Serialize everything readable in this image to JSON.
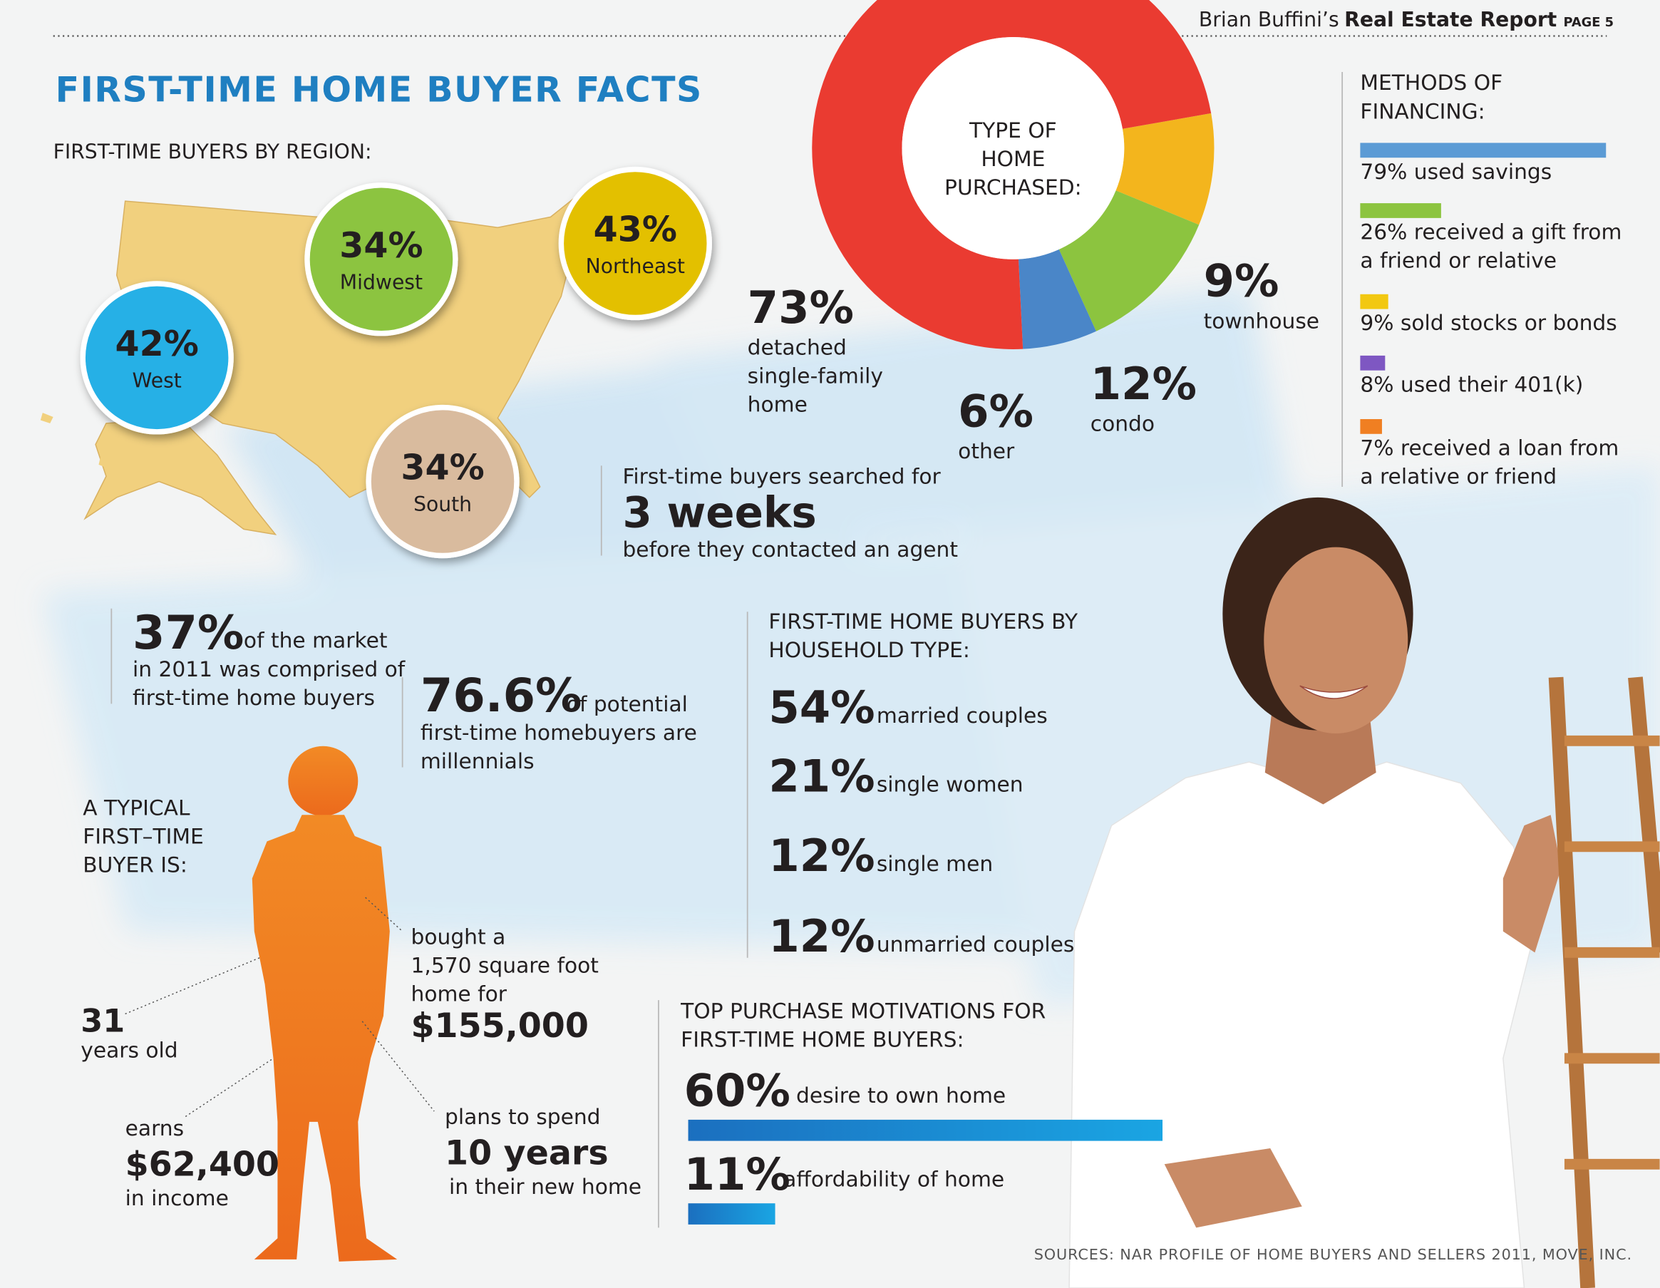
{
  "header": {
    "brand": "Brian Buffini’s",
    "report": "Real Estate Report",
    "page": "PAGE 5"
  },
  "title": "FIRST-TIME HOME BUYER FACTS",
  "regions": {
    "heading": "FIRST-TIME BUYERS BY REGION:",
    "items": [
      {
        "pct": "42%",
        "name": "West",
        "color": "#25b0e6"
      },
      {
        "pct": "34%",
        "name": "Midwest",
        "color": "#8cc43f"
      },
      {
        "pct": "43%",
        "name": "Northeast",
        "color": "#e3c000"
      },
      {
        "pct": "34%",
        "name": "South",
        "color": "#d9bb9e"
      }
    ]
  },
  "home_type": {
    "title": [
      "TYPE OF",
      "HOME",
      "PURCHASED:"
    ],
    "segments": [
      {
        "value": 9,
        "label": "9%",
        "name": [
          "townhouse"
        ],
        "color": "#f3b51d"
      },
      {
        "value": 12,
        "label": "12%",
        "name": [
          "condo"
        ],
        "color": "#8cc43f"
      },
      {
        "value": 6,
        "label": "6%",
        "name": [
          "other"
        ],
        "color": "#4a86c8"
      },
      {
        "value": 73,
        "label": "73%",
        "name": [
          "detached",
          "single-family",
          "home"
        ],
        "color": "#ea3b31"
      }
    ]
  },
  "financing": {
    "heading": [
      "METHODS OF",
      "FINANCING:"
    ],
    "items": [
      {
        "value": 79,
        "text": [
          "79% used savings"
        ],
        "color": "#5b9bd5"
      },
      {
        "value": 26,
        "text": [
          "26% received a gift from",
          "a friend or relative"
        ],
        "color": "#8cc43f"
      },
      {
        "value": 9,
        "text": [
          "9% sold stocks or bonds"
        ],
        "color": "#f2c811"
      },
      {
        "value": 8,
        "text": [
          "8% used their 401(k)"
        ],
        "color": "#7e57c2"
      },
      {
        "value": 7,
        "text": [
          "7% received a loan from",
          "a relative or friend"
        ],
        "color": "#f07f22"
      }
    ]
  },
  "search": {
    "intro": "First-time buyers searched for",
    "big": "3 weeks",
    "outro": "before they contacted an agent"
  },
  "market": {
    "big": "37%",
    "rest": "of the market",
    "lines": [
      "in 2011 was comprised of",
      "first-time home buyers"
    ]
  },
  "millennials": {
    "big": "76.6%",
    "rest": "of potential",
    "lines": [
      "first-time homebuyers are",
      "millennials"
    ]
  },
  "typical_buyer": {
    "heading": [
      "A TYPICAL",
      "FIRST–TIME",
      "BUYER IS:"
    ],
    "age": {
      "big": "31",
      "after": "years old"
    },
    "income": {
      "before": "earns",
      "big": "$62,400",
      "after": "in income"
    },
    "home": {
      "lines": [
        "bought a",
        "1,570 square foot",
        "home for"
      ],
      "big": "$155,000"
    },
    "stay": {
      "before": "plans to spend",
      "big": "10 years",
      "after": "in their new home"
    }
  },
  "household": {
    "heading": [
      "FIRST-TIME HOME BUYERS BY",
      "HOUSEHOLD TYPE:"
    ],
    "items": [
      {
        "pct": "54%",
        "label": "married couples"
      },
      {
        "pct": "21%",
        "label": "single women"
      },
      {
        "pct": "12%",
        "label": "single men"
      },
      {
        "pct": "12%",
        "label": "unmarried couples"
      }
    ]
  },
  "motivations": {
    "heading": [
      "TOP PURCHASE MOTIVATIONS FOR",
      "FIRST-TIME HOME BUYERS:"
    ],
    "items": [
      {
        "value": 60,
        "label": "60%",
        "text": "desire to own home"
      },
      {
        "value": 11,
        "label": "11%",
        "text": "affordability of home"
      }
    ]
  },
  "sources": "SOURCES: NAR PROFILE OF HOME BUYERS AND SELLERS 2011, MOVE, INC."
}
